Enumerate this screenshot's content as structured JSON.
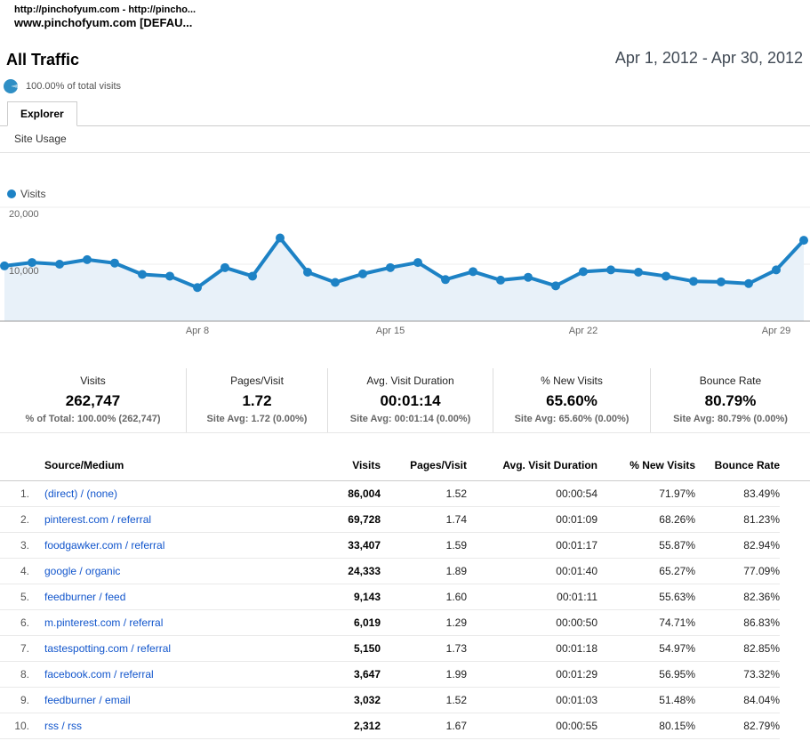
{
  "window": {
    "line1": "http://pinchofyum.com - http://pincho...",
    "line2": "www.pinchofyum.com [DEFAU..."
  },
  "header": {
    "title": "All Traffic",
    "date_range": "Apr 1, 2012 - Apr 30, 2012",
    "segment_label": "100.00% of total visits"
  },
  "tabs": {
    "explorer": "Explorer"
  },
  "subtabs": {
    "site_usage": "Site Usage"
  },
  "chart_data": {
    "type": "area",
    "title": "",
    "legend": "Visits",
    "legend_position": "top-left",
    "grid": true,
    "x": [
      "Apr 1",
      "Apr 2",
      "Apr 3",
      "Apr 4",
      "Apr 5",
      "Apr 6",
      "Apr 7",
      "Apr 8",
      "Apr 9",
      "Apr 10",
      "Apr 11",
      "Apr 12",
      "Apr 13",
      "Apr 14",
      "Apr 15",
      "Apr 16",
      "Apr 17",
      "Apr 18",
      "Apr 19",
      "Apr 20",
      "Apr 21",
      "Apr 22",
      "Apr 23",
      "Apr 24",
      "Apr 25",
      "Apr 26",
      "Apr 27",
      "Apr 28",
      "Apr 29",
      "Apr 30"
    ],
    "series": [
      {
        "name": "Visits",
        "values": [
          9700,
          10300,
          10000,
          10800,
          10200,
          8200,
          7900,
          5900,
          9400,
          7900,
          14600,
          8600,
          6800,
          8300,
          9400,
          10300,
          7300,
          8700,
          7200,
          7700,
          6200,
          8700,
          9000,
          8600,
          7900,
          7000,
          6900,
          6600,
          9000,
          14200
        ]
      }
    ],
    "ylim": [
      0,
      20000
    ],
    "y_ticks": [
      {
        "value": 10000,
        "label": "10,000"
      },
      {
        "value": 20000,
        "label": "20,000"
      }
    ],
    "x_ticks": [
      {
        "label": "Apr 8",
        "day": 7
      },
      {
        "label": "Apr 15",
        "day": 14
      },
      {
        "label": "Apr 22",
        "day": 21
      },
      {
        "label": "Apr 29",
        "day": 28
      }
    ],
    "line_color": "#1d82c5",
    "fill_color": "#e8f1f9",
    "grid_color": "#ececec",
    "axis_color": "#999999"
  },
  "metrics": [
    {
      "label": "Visits",
      "value": "262,747",
      "sub": "% of Total: 100.00% (262,747)"
    },
    {
      "label": "Pages/Visit",
      "value": "1.72",
      "sub": "Site Avg: 1.72 (0.00%)"
    },
    {
      "label": "Avg. Visit Duration",
      "value": "00:01:14",
      "sub": "Site Avg: 00:01:14 (0.00%)"
    },
    {
      "label": "% New Visits",
      "value": "65.60%",
      "sub": "Site Avg: 65.60% (0.00%)"
    },
    {
      "label": "Bounce Rate",
      "value": "80.79%",
      "sub": "Site Avg: 80.79% (0.00%)"
    }
  ],
  "table": {
    "columns": {
      "source": "Source/Medium",
      "visits": "Visits",
      "pages_visit": "Pages/Visit",
      "avg_duration": "Avg. Visit Duration",
      "new_visits": "% New Visits",
      "bounce": "Bounce Rate"
    },
    "rows": [
      {
        "rank": "1.",
        "source": "(direct) / (none)",
        "visits": "86,004",
        "pages_visit": "1.52",
        "avg_duration": "00:00:54",
        "new_visits": "71.97%",
        "bounce": "83.49%"
      },
      {
        "rank": "2.",
        "source": "pinterest.com / referral",
        "visits": "69,728",
        "pages_visit": "1.74",
        "avg_duration": "00:01:09",
        "new_visits": "68.26%",
        "bounce": "81.23%"
      },
      {
        "rank": "3.",
        "source": "foodgawker.com / referral",
        "visits": "33,407",
        "pages_visit": "1.59",
        "avg_duration": "00:01:17",
        "new_visits": "55.87%",
        "bounce": "82.94%"
      },
      {
        "rank": "4.",
        "source": "google / organic",
        "visits": "24,333",
        "pages_visit": "1.89",
        "avg_duration": "00:01:40",
        "new_visits": "65.27%",
        "bounce": "77.09%"
      },
      {
        "rank": "5.",
        "source": "feedburner / feed",
        "visits": "9,143",
        "pages_visit": "1.60",
        "avg_duration": "00:01:11",
        "new_visits": "55.63%",
        "bounce": "82.36%"
      },
      {
        "rank": "6.",
        "source": "m.pinterest.com / referral",
        "visits": "6,019",
        "pages_visit": "1.29",
        "avg_duration": "00:00:50",
        "new_visits": "74.71%",
        "bounce": "86.83%"
      },
      {
        "rank": "7.",
        "source": "tastespotting.com / referral",
        "visits": "5,150",
        "pages_visit": "1.73",
        "avg_duration": "00:01:18",
        "new_visits": "54.97%",
        "bounce": "82.85%"
      },
      {
        "rank": "8.",
        "source": "facebook.com / referral",
        "visits": "3,647",
        "pages_visit": "1.99",
        "avg_duration": "00:01:29",
        "new_visits": "56.95%",
        "bounce": "73.32%"
      },
      {
        "rank": "9.",
        "source": "feedburner / email",
        "visits": "3,032",
        "pages_visit": "1.52",
        "avg_duration": "00:01:03",
        "new_visits": "51.48%",
        "bounce": "84.04%"
      },
      {
        "rank": "10.",
        "source": "rss / rss",
        "visits": "2,312",
        "pages_visit": "1.67",
        "avg_duration": "00:00:55",
        "new_visits": "80.15%",
        "bounce": "82.79%"
      }
    ]
  },
  "colors": {
    "chart_blue": "#1d82c5",
    "link_blue": "#1155cc",
    "pie_blue": "#2f8fc5"
  }
}
